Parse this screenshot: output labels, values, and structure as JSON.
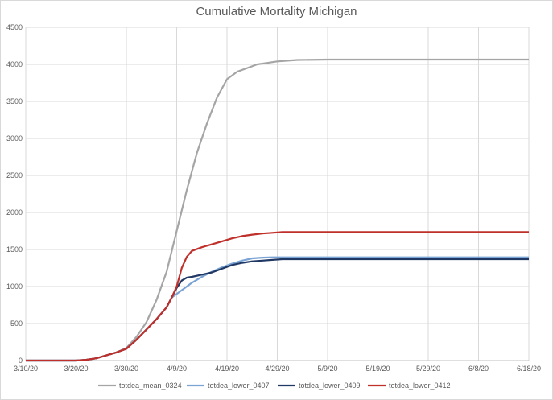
{
  "chart_data": {
    "type": "line",
    "title": "Cumulative Mortality Michigan",
    "xlabel": "",
    "ylabel": "",
    "ylim": [
      0,
      4500
    ],
    "yticks": [
      0,
      500,
      1000,
      1500,
      2000,
      2500,
      3000,
      3500,
      4000,
      4500
    ],
    "xtick_labels": [
      "3/10/20",
      "3/20/20",
      "3/30/20",
      "4/9/20",
      "4/19/20",
      "4/29/20",
      "5/9/20",
      "5/19/20",
      "5/29/20",
      "6/8/20",
      "6/18/20"
    ],
    "x_start": "3/10/20",
    "x_end": "6/18/20",
    "grid": true,
    "legend_position": "bottom",
    "series": [
      {
        "name": "totdea_mean_0324",
        "color": "#a5a5a5",
        "points": [
          [
            "3/10/20",
            0
          ],
          [
            "3/20/20",
            0
          ],
          [
            "3/22/20",
            10
          ],
          [
            "3/24/20",
            30
          ],
          [
            "3/26/20",
            70
          ],
          [
            "3/28/20",
            110
          ],
          [
            "3/30/20",
            170
          ],
          [
            "4/1/20",
            320
          ],
          [
            "4/3/20",
            520
          ],
          [
            "4/5/20",
            820
          ],
          [
            "4/7/20",
            1200
          ],
          [
            "4/9/20",
            1750
          ],
          [
            "4/11/20",
            2300
          ],
          [
            "4/13/20",
            2800
          ],
          [
            "4/15/20",
            3200
          ],
          [
            "4/17/20",
            3550
          ],
          [
            "4/19/20",
            3800
          ],
          [
            "4/21/20",
            3900
          ],
          [
            "4/23/20",
            3950
          ],
          [
            "4/25/20",
            4000
          ],
          [
            "4/27/20",
            4020
          ],
          [
            "4/29/20",
            4040
          ],
          [
            "5/1/20",
            4050
          ],
          [
            "5/3/20",
            4060
          ],
          [
            "5/9/20",
            4065
          ],
          [
            "6/18/20",
            4065
          ]
        ]
      },
      {
        "name": "totdea_lower_0407",
        "color": "#7ba4d4",
        "points": [
          [
            "3/10/20",
            0
          ],
          [
            "3/20/20",
            0
          ],
          [
            "3/22/20",
            10
          ],
          [
            "3/24/20",
            30
          ],
          [
            "3/26/20",
            70
          ],
          [
            "3/28/20",
            110
          ],
          [
            "3/30/20",
            160
          ],
          [
            "4/1/20",
            280
          ],
          [
            "4/3/20",
            420
          ],
          [
            "4/5/20",
            560
          ],
          [
            "4/7/20",
            720
          ],
          [
            "4/8/20",
            850
          ],
          [
            "4/10/20",
            950
          ],
          [
            "4/12/20",
            1050
          ],
          [
            "4/14/20",
            1130
          ],
          [
            "4/16/20",
            1200
          ],
          [
            "4/18/20",
            1260
          ],
          [
            "4/20/20",
            1310
          ],
          [
            "4/22/20",
            1350
          ],
          [
            "4/24/20",
            1380
          ],
          [
            "4/26/20",
            1390
          ],
          [
            "4/28/20",
            1395
          ],
          [
            "4/30/20",
            1395
          ],
          [
            "6/18/20",
            1395
          ]
        ]
      },
      {
        "name": "totdea_lower_0409",
        "color": "#203864",
        "points": [
          [
            "3/10/20",
            0
          ],
          [
            "3/20/20",
            0
          ],
          [
            "3/22/20",
            10
          ],
          [
            "3/24/20",
            30
          ],
          [
            "3/26/20",
            70
          ],
          [
            "3/28/20",
            110
          ],
          [
            "3/30/20",
            160
          ],
          [
            "4/1/20",
            280
          ],
          [
            "4/3/20",
            420
          ],
          [
            "4/5/20",
            560
          ],
          [
            "4/7/20",
            720
          ],
          [
            "4/8/20",
            850
          ],
          [
            "4/9/20",
            980
          ],
          [
            "4/10/20",
            1080
          ],
          [
            "4/11/20",
            1120
          ],
          [
            "4/12/20",
            1130
          ],
          [
            "4/14/20",
            1160
          ],
          [
            "4/16/20",
            1190
          ],
          [
            "4/18/20",
            1240
          ],
          [
            "4/20/20",
            1290
          ],
          [
            "4/22/20",
            1320
          ],
          [
            "4/24/20",
            1340
          ],
          [
            "4/26/20",
            1350
          ],
          [
            "4/28/20",
            1360
          ],
          [
            "4/30/20",
            1370
          ],
          [
            "6/18/20",
            1370
          ]
        ]
      },
      {
        "name": "totdea_lower_0412",
        "color": "#c0302b",
        "points": [
          [
            "3/10/20",
            0
          ],
          [
            "3/20/20",
            0
          ],
          [
            "3/22/20",
            10
          ],
          [
            "3/24/20",
            30
          ],
          [
            "3/26/20",
            70
          ],
          [
            "3/28/20",
            110
          ],
          [
            "3/30/20",
            160
          ],
          [
            "4/1/20",
            280
          ],
          [
            "4/3/20",
            420
          ],
          [
            "4/5/20",
            560
          ],
          [
            "4/7/20",
            720
          ],
          [
            "4/8/20",
            850
          ],
          [
            "4/9/20",
            1000
          ],
          [
            "4/10/20",
            1250
          ],
          [
            "4/11/20",
            1400
          ],
          [
            "4/12/20",
            1480
          ],
          [
            "4/14/20",
            1530
          ],
          [
            "4/16/20",
            1570
          ],
          [
            "4/18/20",
            1610
          ],
          [
            "4/20/20",
            1650
          ],
          [
            "4/22/20",
            1680
          ],
          [
            "4/24/20",
            1700
          ],
          [
            "4/26/20",
            1715
          ],
          [
            "4/28/20",
            1725
          ],
          [
            "4/30/20",
            1735
          ],
          [
            "6/18/20",
            1735
          ]
        ]
      }
    ]
  }
}
